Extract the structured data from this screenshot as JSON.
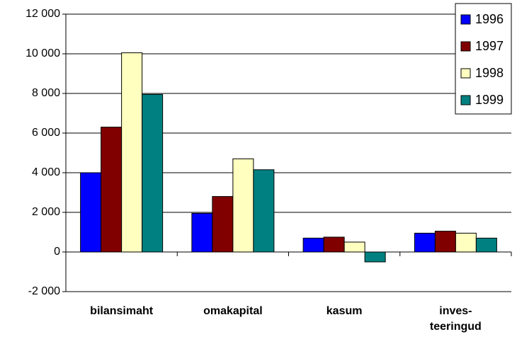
{
  "chart_data": {
    "type": "bar",
    "categories": [
      "bilansimaht",
      "omakapital",
      "kasum",
      "inves-\nteeringud"
    ],
    "series": [
      {
        "name": "1996",
        "color": "#0000ff",
        "values": [
          4000,
          1950,
          700,
          950
        ]
      },
      {
        "name": "1997",
        "color": "#800000",
        "values": [
          6300,
          2800,
          750,
          1050
        ]
      },
      {
        "name": "1998",
        "color": "#ffffc0",
        "values": [
          10050,
          4700,
          500,
          950
        ]
      },
      {
        "name": "1999",
        "color": "#008080",
        "values": [
          7950,
          4150,
          -500,
          700
        ]
      }
    ],
    "ylim": [
      -2000,
      12000
    ],
    "yticks": [
      {
        "value": -2000,
        "label": "-2 000"
      },
      0,
      {
        "value": 2000,
        "label": "2 000"
      },
      {
        "value": 4000,
        "label": "4 000"
      },
      {
        "value": 6000,
        "label": "6 000"
      },
      {
        "value": 8000,
        "label": "8 000"
      },
      {
        "value": 10000,
        "label": "10 000"
      },
      {
        "value": 12000,
        "label": "12 000"
      }
    ],
    "grid": true,
    "legend": "top-right"
  }
}
